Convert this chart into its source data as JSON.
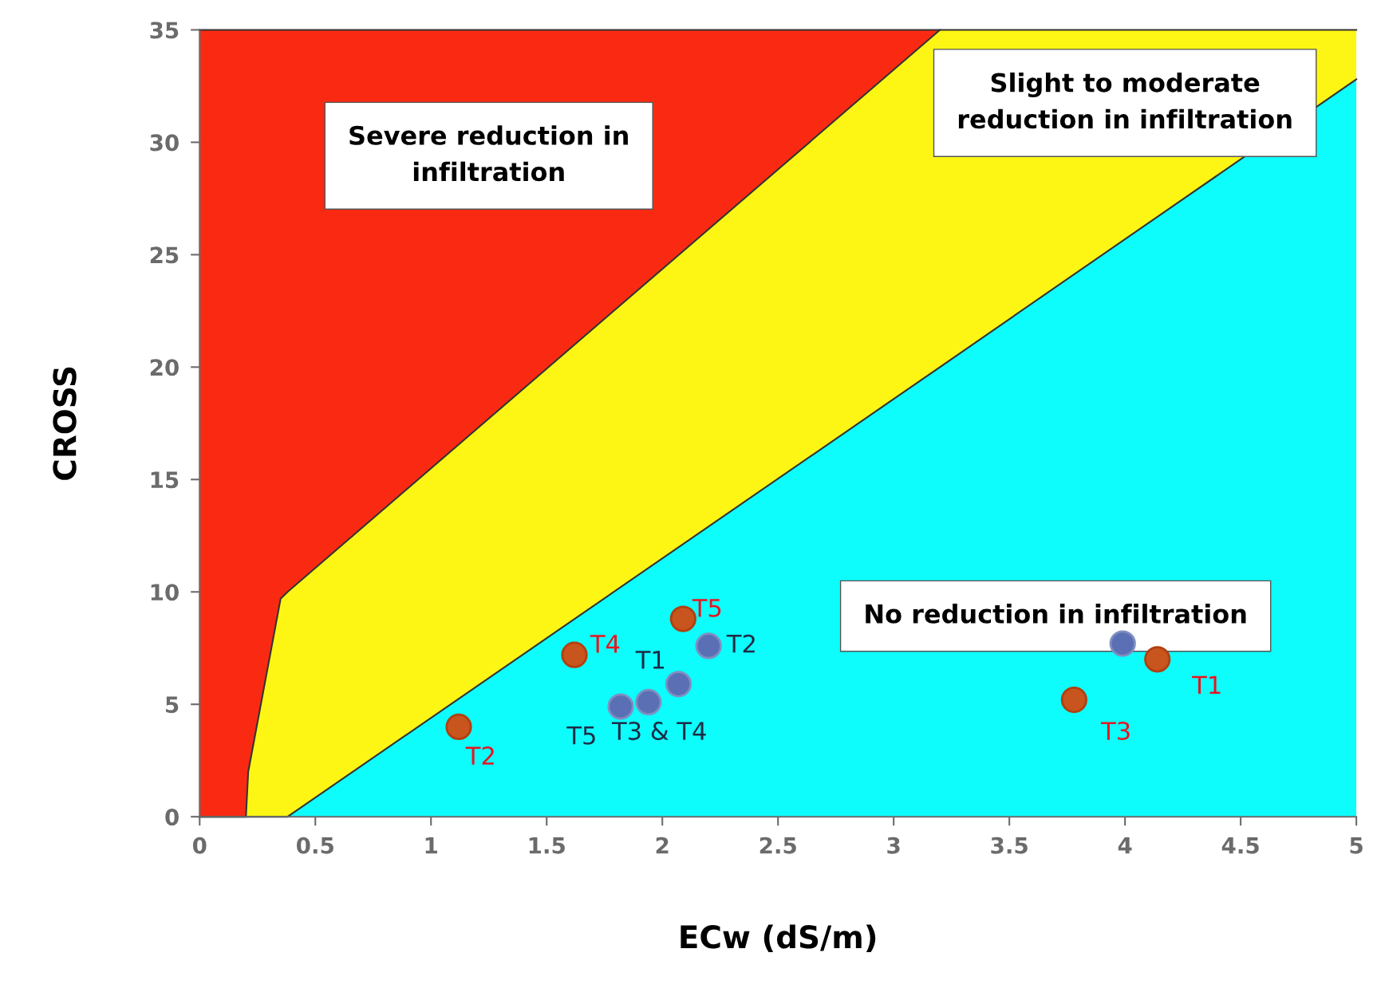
{
  "chart_data": {
    "type": "scatter",
    "xlabel": "ECw (dS/m)",
    "ylabel": "CROSS",
    "xlim": [
      0,
      5
    ],
    "ylim": [
      0,
      35
    ],
    "xticks": [
      0,
      0.5,
      1,
      1.5,
      2,
      2.5,
      3,
      3.5,
      4,
      4.5,
      5
    ],
    "yticks": [
      0,
      5,
      10,
      15,
      20,
      25,
      30,
      35
    ],
    "grid": false,
    "legend": false,
    "stacked": true,
    "annotations": [
      "Severe reduction in\ninfiltration",
      "Slight to moderate\nreduction in infiltration",
      "No reduction in infiltration"
    ],
    "series": [
      {
        "type": "area",
        "marker": "none",
        "color": "#0dfcfc",
        "x": [
          0,
          0.2,
          0.21,
          0.35,
          0.38,
          3.2,
          5
        ],
        "values": [
          0,
          0,
          0,
          0,
          0,
          20.0,
          32.8
        ]
      },
      {
        "type": "area",
        "marker": "none",
        "color": "#fdf614",
        "x": [
          0,
          0.2,
          0.21,
          0.35,
          0.38,
          3.2,
          5
        ],
        "values": [
          0,
          0,
          2,
          9.7,
          10.0,
          15.0,
          2.2
        ]
      },
      {
        "type": "area",
        "marker": "none",
        "color": "#fa2a12",
        "x": [
          0,
          0.2,
          0.21,
          0.35,
          0.38,
          3.2
        ],
        "values": [
          35,
          35,
          33,
          25.3,
          25.0,
          0
        ]
      },
      {
        "marker": "circle",
        "color": "#5b6fb5",
        "x": [
          1.82,
          1.94,
          2.07,
          2.2,
          3.99
        ],
        "values": [
          4.9,
          5.1,
          5.9,
          7.6,
          7.7
        ],
        "value_labels": [
          "T5",
          "T3 & T4",
          "T1",
          "T2",
          null
        ]
      },
      {
        "marker": "circle",
        "color": "#c8541e",
        "x": [
          1.12,
          1.62,
          2.09,
          3.78,
          4.14
        ],
        "values": [
          4.0,
          7.2,
          8.8,
          5.2,
          7.0
        ],
        "value_labels": [
          "T2",
          "T4",
          "T5",
          "T3",
          "T1"
        ]
      }
    ]
  }
}
